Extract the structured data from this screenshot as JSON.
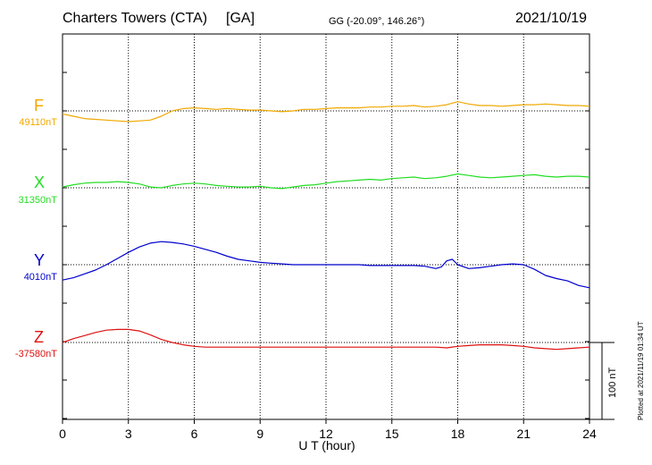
{
  "header": {
    "station": "Charters Towers (CTA)",
    "network": "[GA]",
    "coords": "GG (-20.09°, 146.26°)",
    "date": "2021/10/19"
  },
  "plotted_note": "Plotted at 2021/11/19 01:34 UT",
  "scale_label": "100 nT",
  "chart_data": {
    "type": "line",
    "xlabel": "U T (hour)",
    "xlim": [
      0,
      24
    ],
    "xticks": [
      "0",
      "3",
      "6",
      "9",
      "12",
      "15",
      "18",
      "21",
      "24"
    ],
    "scale_bar_nT": 100,
    "grid": true,
    "series": [
      {
        "name": "F",
        "baseline_label": "49110nT",
        "baseline": 49110,
        "color": "#f0a800",
        "x": [
          0,
          0.5,
          1,
          1.5,
          2,
          2.5,
          3,
          3.5,
          4,
          4.5,
          5,
          5.5,
          6,
          6.5,
          7,
          7.5,
          8,
          8.5,
          9,
          9.5,
          10,
          10.5,
          11,
          11.5,
          12,
          12.5,
          13,
          13.5,
          14,
          14.5,
          15,
          15.5,
          16,
          16.5,
          17,
          17.5,
          18,
          18.5,
          19,
          19.5,
          20,
          20.5,
          21,
          21.5,
          22,
          22.5,
          23,
          23.5,
          24
        ],
        "values": [
          49106,
          49103,
          49100,
          49099,
          49098,
          49097,
          49096,
          49097,
          49098,
          49103,
          49110,
          49113,
          49114,
          49113,
          49112,
          49113,
          49112,
          49111,
          49111,
          49110,
          49109,
          49110,
          49112,
          49112,
          49113,
          49114,
          49114,
          49114,
          49115,
          49115,
          49116,
          49116,
          49117,
          49115,
          49116,
          49118,
          49122,
          49119,
          49117,
          49117,
          49116,
          49117,
          49118,
          49118,
          49119,
          49118,
          49117,
          49117,
          49116
        ]
      },
      {
        "name": "X",
        "baseline_label": "31350nT",
        "baseline": 31350,
        "color": "#22dd22",
        "x": [
          0,
          0.5,
          1,
          1.5,
          2,
          2.5,
          3,
          3.5,
          4,
          4.5,
          5,
          5.5,
          6,
          6.5,
          7,
          7.5,
          8,
          8.5,
          9,
          9.5,
          10,
          10.5,
          11,
          11.5,
          12,
          12.5,
          13,
          13.5,
          14,
          14.5,
          15,
          15.5,
          16,
          16.5,
          17,
          17.5,
          18,
          18.5,
          19,
          19.5,
          20,
          20.5,
          21,
          21.5,
          22,
          22.5,
          23,
          23.5,
          24
        ],
        "values": [
          31351,
          31354,
          31356,
          31357,
          31357,
          31358,
          31357,
          31355,
          31351,
          31350,
          31353,
          31355,
          31356,
          31355,
          31353,
          31352,
          31351,
          31351,
          31352,
          31350,
          31349,
          31351,
          31353,
          31354,
          31356,
          31358,
          31359,
          31360,
          31361,
          31360,
          31362,
          31363,
          31364,
          31362,
          31363,
          31365,
          31368,
          31366,
          31364,
          31363,
          31364,
          31365,
          31366,
          31367,
          31365,
          31364,
          31365,
          31365,
          31364
        ]
      },
      {
        "name": "Y",
        "baseline_label": "4010nT",
        "baseline": 4010,
        "color": "#0000cc",
        "x": [
          0,
          0.5,
          1,
          1.5,
          2,
          2.5,
          3,
          3.5,
          4,
          4.5,
          5,
          5.5,
          6,
          6.5,
          7,
          7.5,
          8,
          8.5,
          9,
          9.5,
          10,
          10.5,
          11,
          11.5,
          12,
          12.5,
          13,
          13.5,
          14,
          14.5,
          15,
          15.5,
          16,
          16.5,
          17,
          17.25,
          17.5,
          17.75,
          18,
          18.5,
          19,
          19.5,
          20,
          20.5,
          21,
          21.5,
          22,
          22.5,
          23,
          23.5,
          24
        ],
        "values": [
          3990,
          3993,
          3998,
          4003,
          4010,
          4018,
          4026,
          4033,
          4038,
          4040,
          4039,
          4037,
          4034,
          4030,
          4026,
          4021,
          4017,
          4015,
          4013,
          4012,
          4011,
          4010,
          4010,
          4010,
          4010,
          4010,
          4010,
          4010,
          4009,
          4009,
          4009,
          4009,
          4009,
          4008,
          4005,
          4007,
          4015,
          4017,
          4010,
          4005,
          4006,
          4008,
          4010,
          4011,
          4010,
          4004,
          3996,
          3992,
          3989,
          3983,
          3980
        ]
      },
      {
        "name": "Z",
        "baseline_label": "-37580nT",
        "baseline": -37580,
        "color": "#dd1111",
        "x": [
          0,
          0.5,
          1,
          1.5,
          2,
          2.5,
          3,
          3.5,
          4,
          4.5,
          5,
          5.5,
          6,
          6.5,
          7,
          7.5,
          8,
          8.5,
          9,
          9.5,
          10,
          11,
          12,
          13,
          14,
          15,
          16,
          17,
          17.5,
          18,
          18.5,
          19,
          19.5,
          20,
          20.5,
          21,
          21.5,
          22,
          22.5,
          23,
          23.5,
          24
        ],
        "values": [
          -37580,
          -37575,
          -37571,
          -37567,
          -37564,
          -37563,
          -37563,
          -37565,
          -37570,
          -37576,
          -37580,
          -37583,
          -37585,
          -37586,
          -37586,
          -37586,
          -37586,
          -37586,
          -37586,
          -37586,
          -37586,
          -37586,
          -37586,
          -37586,
          -37586,
          -37586,
          -37586,
          -37586,
          -37587,
          -37585,
          -37584,
          -37583,
          -37583,
          -37583,
          -37584,
          -37585,
          -37587,
          -37588,
          -37589,
          -37588,
          -37587,
          -37586
        ]
      }
    ]
  }
}
